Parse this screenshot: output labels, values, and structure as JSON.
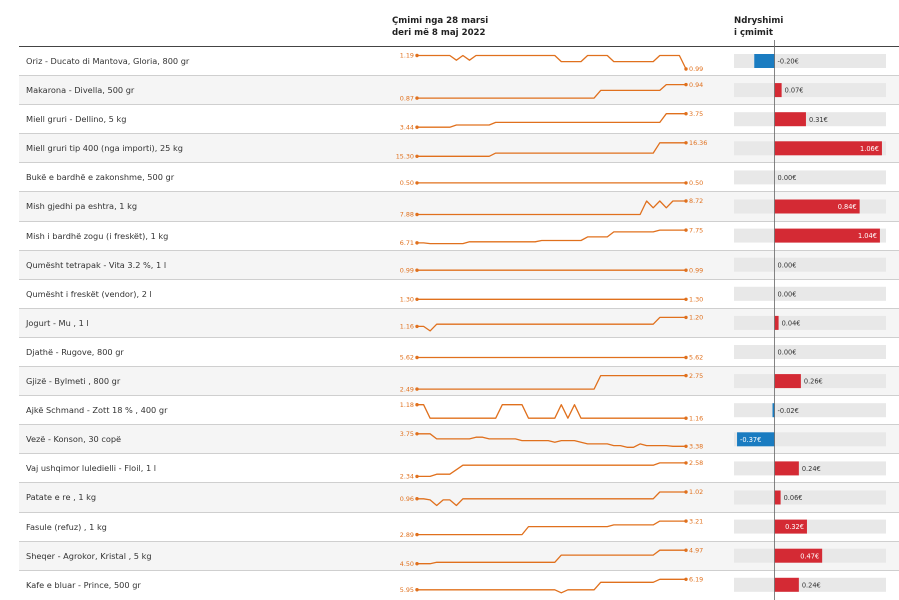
{
  "header": {
    "price_line1": "Çmimi nga 28 marsi",
    "price_line2": "deri më 8 maj 2022",
    "change_line1": "Ndryshimi",
    "change_line2": "i çmimit"
  },
  "colors": {
    "line": "#e0701d",
    "increase": "#d42a34",
    "decrease": "#1a7cc1",
    "track": "#e8e8e8",
    "axis": "#666666"
  },
  "chart_data": {
    "type": "table",
    "columns": [
      "Produkti",
      "Çmimi nga 28 marsi deri më 8 maj 2022",
      "Ndryshimi i çmimit"
    ],
    "rows": [
      {
        "product": "Oriz - Ducato di Mantova, Gloria, 800 gr",
        "start": 1.19,
        "end": 0.99,
        "start_label": "1.19",
        "end_label": "0.99",
        "change": -0.2,
        "change_label": "-0.20€",
        "series": [
          1.19,
          1.19,
          1.19,
          1.19,
          1.19,
          1.19,
          1.12,
          1.19,
          1.12,
          1.19,
          1.19,
          1.19,
          1.19,
          1.19,
          1.19,
          1.19,
          1.19,
          1.19,
          1.19,
          1.19,
          1.19,
          1.19,
          1.1,
          1.1,
          1.1,
          1.1,
          1.19,
          1.19,
          1.19,
          1.19,
          1.1,
          1.1,
          1.1,
          1.1,
          1.1,
          1.1,
          1.1,
          1.19,
          1.19,
          1.19,
          1.19,
          0.99
        ]
      },
      {
        "product": "Makarona - Divella, 500 gr",
        "start": 0.87,
        "end": 0.94,
        "start_label": "0.87",
        "end_label": "0.94",
        "change": 0.07,
        "change_label": "0.07€",
        "series": [
          0.87,
          0.87,
          0.87,
          0.87,
          0.87,
          0.87,
          0.87,
          0.87,
          0.87,
          0.87,
          0.87,
          0.87,
          0.87,
          0.87,
          0.87,
          0.87,
          0.87,
          0.87,
          0.87,
          0.87,
          0.87,
          0.87,
          0.87,
          0.87,
          0.87,
          0.87,
          0.87,
          0.87,
          0.91,
          0.91,
          0.91,
          0.91,
          0.91,
          0.91,
          0.91,
          0.91,
          0.91,
          0.91,
          0.94,
          0.94,
          0.94,
          0.94
        ]
      },
      {
        "product": "Miell gruri - Dellino, 5 kg",
        "start": 3.44,
        "end": 3.75,
        "start_label": "3.44",
        "end_label": "3.75",
        "change": 0.31,
        "change_label": "0.31€",
        "series": [
          3.44,
          3.44,
          3.44,
          3.44,
          3.44,
          3.44,
          3.49,
          3.49,
          3.49,
          3.49,
          3.49,
          3.49,
          3.55,
          3.55,
          3.55,
          3.55,
          3.55,
          3.55,
          3.55,
          3.55,
          3.55,
          3.55,
          3.55,
          3.55,
          3.55,
          3.55,
          3.55,
          3.55,
          3.55,
          3.55,
          3.55,
          3.55,
          3.55,
          3.55,
          3.55,
          3.55,
          3.55,
          3.55,
          3.75,
          3.75,
          3.75,
          3.75
        ]
      },
      {
        "product": "Miell gruri tip 400 (nga importi), 25 kg",
        "start": 15.3,
        "end": 16.36,
        "start_label": "15.30",
        "end_label": "16.36",
        "change": 1.06,
        "change_label": "1.06€",
        "series": [
          15.3,
          15.3,
          15.3,
          15.3,
          15.3,
          15.3,
          15.3,
          15.3,
          15.3,
          15.3,
          15.3,
          15.3,
          15.55,
          15.55,
          15.55,
          15.55,
          15.55,
          15.55,
          15.55,
          15.55,
          15.55,
          15.55,
          15.55,
          15.55,
          15.55,
          15.55,
          15.55,
          15.55,
          15.55,
          15.55,
          15.55,
          15.55,
          15.55,
          15.55,
          15.55,
          15.55,
          15.55,
          16.36,
          16.36,
          16.36,
          16.36,
          16.36
        ]
      },
      {
        "product": "Bukë e bardhë e zakonshme, 500 gr",
        "start": 0.5,
        "end": 0.5,
        "start_label": "0.50",
        "end_label": "0.50",
        "change": 0.0,
        "change_label": "0.00€",
        "series": [
          0.5,
          0.5
        ]
      },
      {
        "product": "Mish gjedhi pa eshtra, 1 kg",
        "start": 7.88,
        "end": 8.72,
        "start_label": "7.88",
        "end_label": "8.72",
        "change": 0.84,
        "change_label": "0.84€",
        "series": [
          7.88,
          7.88,
          7.88,
          7.88,
          7.88,
          7.88,
          7.88,
          7.88,
          7.88,
          7.88,
          7.88,
          7.88,
          7.88,
          7.88,
          7.88,
          7.88,
          7.88,
          7.88,
          7.88,
          7.88,
          7.88,
          7.88,
          7.88,
          7.88,
          7.88,
          7.88,
          7.88,
          7.88,
          7.88,
          7.88,
          7.88,
          7.88,
          7.88,
          7.88,
          7.88,
          8.72,
          8.3,
          8.72,
          8.3,
          8.72,
          8.72,
          8.72
        ]
      },
      {
        "product": "Mish i bardhë zogu (i freskët), 1 kg",
        "start": 6.71,
        "end": 7.75,
        "start_label": "6.71",
        "end_label": "7.75",
        "change": 1.04,
        "change_label": "1.04€",
        "series": [
          6.71,
          6.71,
          6.65,
          6.65,
          6.65,
          6.65,
          6.65,
          6.65,
          6.8,
          6.8,
          6.8,
          6.8,
          6.8,
          6.8,
          6.8,
          6.8,
          6.8,
          6.8,
          6.8,
          6.9,
          6.9,
          6.9,
          6.9,
          6.9,
          6.9,
          6.9,
          7.2,
          7.2,
          7.2,
          7.2,
          7.6,
          7.6,
          7.6,
          7.6,
          7.6,
          7.6,
          7.6,
          7.75,
          7.75,
          7.75,
          7.75,
          7.75
        ]
      },
      {
        "product": "Qumësht tetrapak - Vita 3.2 %, 1 l",
        "start": 0.99,
        "end": 0.99,
        "start_label": "0.99",
        "end_label": "0.99",
        "change": 0.0,
        "change_label": "0.00€",
        "series": [
          0.99,
          0.99
        ]
      },
      {
        "product": "Qumësht i freskët (vendor), 2 l",
        "start": 1.3,
        "end": 1.3,
        "start_label": "1.30",
        "end_label": "1.30",
        "change": 0.0,
        "change_label": "0.00€",
        "series": [
          1.3,
          1.3
        ]
      },
      {
        "product": "Jogurt - Mu , 1 l",
        "start": 1.16,
        "end": 1.2,
        "start_label": "1.16",
        "end_label": "1.20",
        "change": 0.04,
        "change_label": "0.04€",
        "series": [
          1.16,
          1.16,
          1.14,
          1.17,
          1.17,
          1.17,
          1.17,
          1.17,
          1.17,
          1.17,
          1.17,
          1.17,
          1.17,
          1.17,
          1.17,
          1.17,
          1.17,
          1.17,
          1.17,
          1.17,
          1.17,
          1.17,
          1.17,
          1.17,
          1.17,
          1.17,
          1.17,
          1.17,
          1.17,
          1.17,
          1.17,
          1.17,
          1.17,
          1.17,
          1.17,
          1.17,
          1.17,
          1.2,
          1.2,
          1.2,
          1.2,
          1.2
        ]
      },
      {
        "product": "Djathë - Rugove, 800 gr",
        "start": 5.62,
        "end": 5.62,
        "start_label": "5.62",
        "end_label": "5.62",
        "change": 0.0,
        "change_label": "0.00€",
        "series": [
          5.62,
          5.62
        ]
      },
      {
        "product": "Gjizë - Bylmeti , 800 gr",
        "start": 2.49,
        "end": 2.75,
        "start_label": "2.49",
        "end_label": "2.75",
        "change": 0.26,
        "change_label": "0.26€",
        "series": [
          2.49,
          2.49,
          2.49,
          2.49,
          2.49,
          2.49,
          2.49,
          2.49,
          2.49,
          2.49,
          2.49,
          2.49,
          2.49,
          2.49,
          2.49,
          2.49,
          2.49,
          2.49,
          2.49,
          2.49,
          2.49,
          2.49,
          2.49,
          2.49,
          2.49,
          2.49,
          2.49,
          2.49,
          2.75,
          2.75,
          2.75,
          2.75,
          2.75,
          2.75,
          2.75,
          2.75,
          2.75,
          2.75,
          2.75,
          2.75,
          2.75,
          2.75
        ]
      },
      {
        "product": "Ajkë Schmand - Zott 18 % , 400 gr",
        "start": 1.18,
        "end": 1.16,
        "start_label": "1.18",
        "end_label": "1.16",
        "change": -0.02,
        "change_label": "-0.02€",
        "series": [
          1.18,
          1.18,
          1.16,
          1.16,
          1.16,
          1.16,
          1.16,
          1.16,
          1.16,
          1.16,
          1.16,
          1.16,
          1.16,
          1.18,
          1.18,
          1.18,
          1.18,
          1.16,
          1.16,
          1.16,
          1.16,
          1.16,
          1.18,
          1.16,
          1.18,
          1.16,
          1.16,
          1.16,
          1.16,
          1.16,
          1.16,
          1.16,
          1.16,
          1.16,
          1.16,
          1.16,
          1.16,
          1.16,
          1.16,
          1.16,
          1.16,
          1.16
        ]
      },
      {
        "product": "Vezë - Konson, 30 copë",
        "start": 3.75,
        "end": 3.38,
        "start_label": "3.75",
        "end_label": "3.38",
        "change": -0.37,
        "change_label": "-0.37€",
        "series": [
          3.75,
          3.75,
          3.75,
          3.6,
          3.6,
          3.6,
          3.6,
          3.6,
          3.6,
          3.65,
          3.65,
          3.6,
          3.6,
          3.6,
          3.6,
          3.6,
          3.55,
          3.55,
          3.55,
          3.55,
          3.55,
          3.5,
          3.55,
          3.55,
          3.55,
          3.5,
          3.45,
          3.45,
          3.45,
          3.45,
          3.4,
          3.4,
          3.35,
          3.35,
          3.45,
          3.4,
          3.4,
          3.4,
          3.4,
          3.38,
          3.38,
          3.38
        ]
      },
      {
        "product": "Vaj ushqimor luledielli - Floil, 1 l",
        "start": 2.34,
        "end": 2.58,
        "start_label": "2.34",
        "end_label": "2.58",
        "change": 0.24,
        "change_label": "0.24€",
        "series": [
          2.34,
          2.34,
          2.34,
          2.38,
          2.38,
          2.38,
          2.46,
          2.54,
          2.54,
          2.54,
          2.54,
          2.54,
          2.54,
          2.54,
          2.54,
          2.54,
          2.54,
          2.54,
          2.54,
          2.54,
          2.54,
          2.54,
          2.54,
          2.54,
          2.54,
          2.54,
          2.54,
          2.54,
          2.54,
          2.54,
          2.54,
          2.54,
          2.54,
          2.54,
          2.54,
          2.54,
          2.54,
          2.58,
          2.58,
          2.58,
          2.58,
          2.58
        ]
      },
      {
        "product": "Patate e re , 1 kg",
        "start": 0.96,
        "end": 1.02,
        "start_label": "0.96",
        "end_label": "1.02",
        "change": 0.06,
        "change_label": "0.06€",
        "series": [
          0.96,
          0.96,
          0.95,
          0.9,
          0.95,
          0.95,
          0.9,
          0.96,
          0.96,
          0.96,
          0.96,
          0.96,
          0.96,
          0.96,
          0.96,
          0.96,
          0.96,
          0.96,
          0.96,
          0.96,
          0.96,
          0.96,
          0.96,
          0.96,
          0.96,
          0.96,
          0.96,
          0.96,
          0.96,
          0.96,
          0.96,
          0.96,
          0.96,
          0.96,
          0.96,
          0.96,
          0.96,
          1.02,
          1.02,
          1.02,
          1.02,
          1.02
        ]
      },
      {
        "product": "Fasule (refuz) , 1 kg",
        "start": 2.89,
        "end": 3.21,
        "start_label": "2.89",
        "end_label": "3.21",
        "change": 0.32,
        "change_label": "0.32€",
        "series": [
          2.89,
          2.89,
          2.89,
          2.89,
          2.89,
          2.89,
          2.89,
          2.89,
          2.89,
          2.89,
          2.89,
          2.89,
          2.89,
          2.89,
          2.89,
          2.89,
          2.89,
          3.08,
          3.08,
          3.08,
          3.08,
          3.08,
          3.08,
          3.08,
          3.08,
          3.08,
          3.08,
          3.08,
          3.08,
          3.08,
          3.12,
          3.12,
          3.12,
          3.12,
          3.12,
          3.12,
          3.12,
          3.21,
          3.21,
          3.21,
          3.21,
          3.21
        ]
      },
      {
        "product": "Sheqer - Agrokor, Kristal , 5 kg",
        "start": 4.5,
        "end": 4.97,
        "start_label": "4.50",
        "end_label": "4.97",
        "change": 0.47,
        "change_label": "0.47€",
        "series": [
          4.5,
          4.5,
          4.5,
          4.55,
          4.55,
          4.55,
          4.55,
          4.55,
          4.55,
          4.55,
          4.55,
          4.55,
          4.55,
          4.55,
          4.55,
          4.55,
          4.55,
          4.55,
          4.55,
          4.55,
          4.55,
          4.55,
          4.8,
          4.8,
          4.8,
          4.8,
          4.8,
          4.8,
          4.8,
          4.8,
          4.8,
          4.8,
          4.8,
          4.8,
          4.8,
          4.8,
          4.8,
          4.97,
          4.97,
          4.97,
          4.97,
          4.97
        ]
      },
      {
        "product": "Kafe e bluar - Prince, 500 gr",
        "start": 5.95,
        "end": 6.19,
        "start_label": "5.95",
        "end_label": "6.19",
        "change": 0.24,
        "change_label": "0.24€",
        "series": [
          5.95,
          5.95,
          5.95,
          5.95,
          5.95,
          5.95,
          5.95,
          5.95,
          5.95,
          5.95,
          5.95,
          5.95,
          5.95,
          5.95,
          5.95,
          5.95,
          5.95,
          5.95,
          5.95,
          5.95,
          5.95,
          5.95,
          5.88,
          5.95,
          5.95,
          5.95,
          5.95,
          5.95,
          6.12,
          6.12,
          6.12,
          6.12,
          6.12,
          6.12,
          6.12,
          6.12,
          6.12,
          6.19,
          6.19,
          6.19,
          6.19,
          6.19
        ]
      }
    ],
    "change_domain": [
      -0.4,
      1.1
    ]
  }
}
